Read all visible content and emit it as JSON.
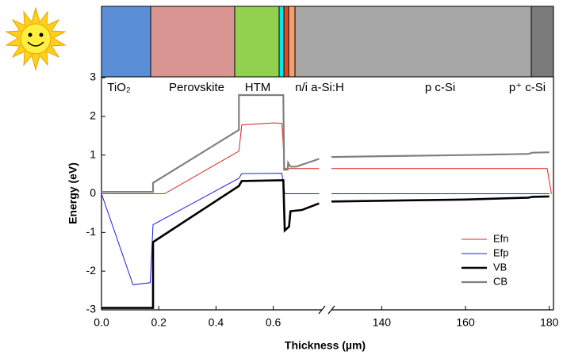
{
  "chart_data": {
    "type": "line",
    "xlabel": "Thickness (µm)",
    "ylabel": "Energy (eV)",
    "layer_labels": [
      "TiO₂",
      "Perovskite",
      "HTM",
      "n/i a-Si:H",
      "p c-Si",
      "p⁺ c-Si"
    ],
    "xlim": [
      0,
      0.77
    ],
    "xticks": [
      {
        "value": 0,
        "label": "0.0"
      },
      0.2,
      0.4,
      0.6
    ],
    "x2lim": [
      128,
      181
    ],
    "x2ticks": [
      140,
      160,
      180
    ],
    "ylim": [
      -3,
      3
    ],
    "yticks": [
      -3,
      -2,
      -1,
      0,
      1,
      2,
      3
    ],
    "legend": "lower right",
    "series": [
      {
        "name": "Efn",
        "color": "#e02020",
        "x": [
          0,
          0.22,
          0.48,
          0.49,
          0.6,
          0.63,
          0.64,
          0.76,
          null,
          128,
          179.5,
          180.5
        ],
        "values": [
          0,
          0,
          1.1,
          1.78,
          1.83,
          1.82,
          0.65,
          0.65,
          null,
          0.65,
          0.65,
          0
        ]
      },
      {
        "name": "Efp",
        "color": "#1f1fe0",
        "x": [
          0,
          0.11,
          0.17,
          0.18,
          0.48,
          0.49,
          0.63,
          0.64,
          0.76,
          null,
          128,
          180
        ],
        "values": [
          0,
          -2.35,
          -2.3,
          -0.8,
          0.4,
          0.52,
          0.53,
          0,
          0,
          null,
          0,
          0
        ]
      },
      {
        "name": "VB",
        "color": "#000000",
        "x": [
          0,
          0.18,
          0.18,
          0.48,
          0.49,
          0.635,
          0.64,
          0.655,
          0.66,
          0.7,
          0.76,
          null,
          128,
          160,
          175,
          176,
          180
        ],
        "values": [
          -2.95,
          -2.95,
          -1.25,
          0.2,
          0.33,
          0.35,
          -0.95,
          -0.85,
          -0.45,
          -0.42,
          -0.25,
          null,
          -0.2,
          -0.15,
          -0.1,
          -0.08,
          -0.07
        ]
      },
      {
        "name": "CB",
        "color": "#808080",
        "x": [
          0,
          0.18,
          0.18,
          0.48,
          0.48,
          0.635,
          0.638,
          0.65,
          0.652,
          0.66,
          0.68,
          0.76,
          null,
          128,
          140,
          160,
          175,
          176,
          180
        ],
        "values": [
          0.05,
          0.05,
          0.28,
          1.65,
          2.55,
          2.55,
          0.62,
          0.62,
          0.8,
          0.7,
          0.7,
          0.9,
          null,
          0.95,
          0.97,
          1.0,
          1.03,
          1.06,
          1.07
        ]
      }
    ]
  }
}
